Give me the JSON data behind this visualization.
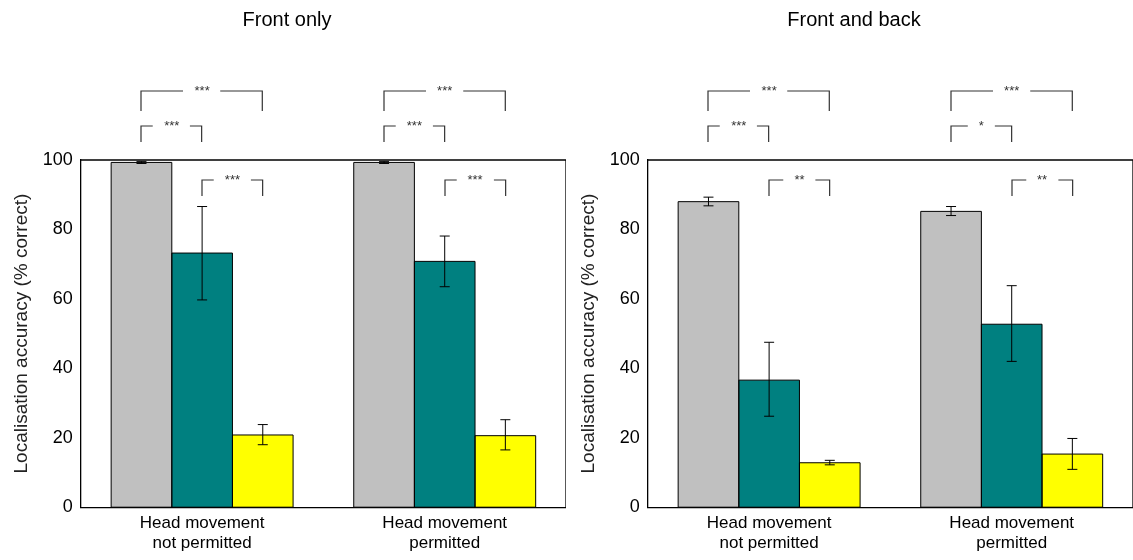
{
  "chart_data": [
    {
      "type": "bar",
      "title": "Front only",
      "ylabel": "Localisation accuracy (% correct)",
      "categories": [
        "Head movement not permitted",
        "Head movement permitted"
      ],
      "series": [
        {
          "color": "#c0c0c0",
          "values": [
            99.3,
            99.3
          ],
          "errors": [
            [
              99.0,
              99.6
            ],
            [
              99.0,
              99.6
            ]
          ]
        },
        {
          "color": "#008080",
          "values": [
            73.2,
            70.8
          ],
          "errors": [
            [
              59.7,
              86.6
            ],
            [
              63.5,
              78.1
            ]
          ]
        },
        {
          "color": "#ffff00",
          "values": [
            20.8,
            20.6
          ],
          "errors": [
            [
              18.0,
              23.8
            ],
            [
              16.5,
              25.2
            ]
          ]
        }
      ],
      "ylim": [
        0,
        100
      ],
      "yticks": [
        0,
        20,
        40,
        60,
        80,
        100
      ],
      "grid": false,
      "annotations": [
        "***",
        "***",
        "***",
        "***",
        "***",
        "***"
      ]
    },
    {
      "type": "bar",
      "title": "Front and back",
      "ylabel": "Localisation accuracy (% correct)",
      "categories": [
        "Head movement not permitted",
        "Head movement permitted"
      ],
      "series": [
        {
          "color": "#c0c0c0",
          "values": [
            88.0,
            85.2
          ],
          "errors": [
            [
              86.8,
              89.3
            ],
            [
              84.0,
              86.6
            ]
          ]
        },
        {
          "color": "#008080",
          "values": [
            36.6,
            52.7
          ],
          "errors": [
            [
              26.2,
              47.5
            ],
            [
              42.0,
              63.8
            ]
          ]
        },
        {
          "color": "#ffff00",
          "values": [
            12.8,
            15.3
          ],
          "errors": [
            [
              12.2,
              13.5
            ],
            [
              10.9,
              19.8
            ]
          ]
        }
      ],
      "ylim": [
        0,
        100
      ],
      "yticks": [
        0,
        20,
        40,
        60,
        80,
        100
      ],
      "grid": false,
      "annotations": [
        "***",
        "***",
        "**",
        "***",
        "*",
        "**"
      ]
    }
  ]
}
